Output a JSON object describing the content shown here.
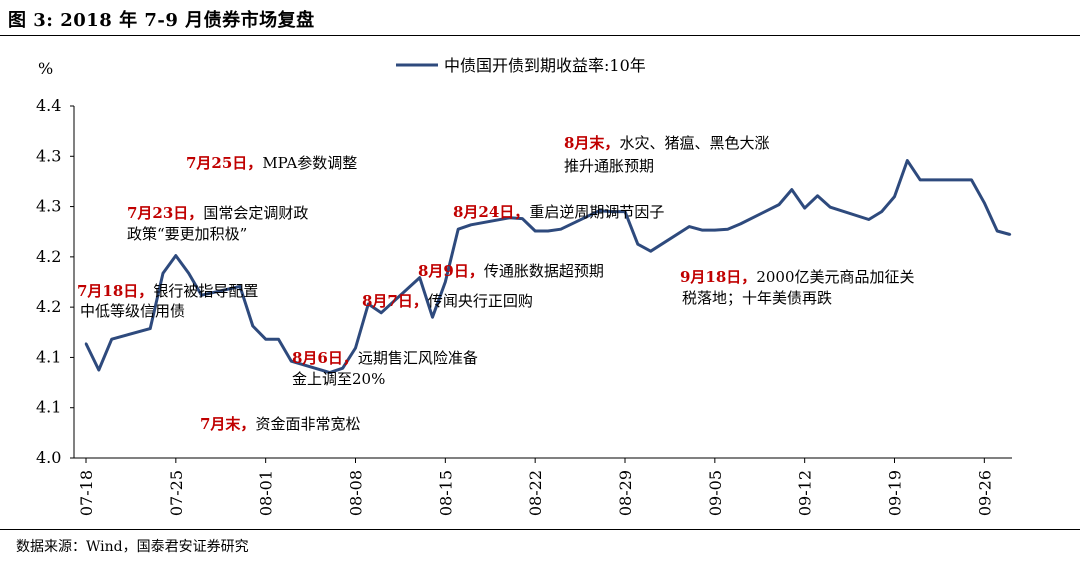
{
  "figure": {
    "title": "图 3:  2018 年 7-9 月债券市场复盘",
    "source": "数据来源：Wind，国泰君安证券研究"
  },
  "chart_data": {
    "type": "line",
    "ylabel": "%",
    "ylim": [
      4.0,
      4.4
    ],
    "y_tick_labels": [
      "4.4",
      "4.3",
      "4.3",
      "4.2",
      "4.2",
      "4.1",
      "4.1",
      "4.0"
    ],
    "y_tick_values": [
      4.4,
      4.35,
      4.3,
      4.25,
      4.2,
      4.15,
      4.1,
      4.05
    ],
    "x_tick_labels": [
      "07-18",
      "07-25",
      "08-01",
      "08-08",
      "08-15",
      "08-22",
      "08-29",
      "09-05",
      "09-12",
      "09-19",
      "09-26"
    ],
    "legend": {
      "position": "top-center"
    },
    "series": [
      {
        "name": "中债国开债到期收益率:10年",
        "color": "#2e4a7d",
        "x": [
          "07-18",
          "07-19",
          "07-20",
          "07-23",
          "07-24",
          "07-25",
          "07-26",
          "07-27",
          "07-30",
          "07-31",
          "08-01",
          "08-02",
          "08-03",
          "08-06",
          "08-07",
          "08-08",
          "08-09",
          "08-10",
          "08-13",
          "08-14",
          "08-15",
          "08-16",
          "08-17",
          "08-20",
          "08-21",
          "08-22",
          "08-23",
          "08-24",
          "08-27",
          "08-28",
          "08-29",
          "08-30",
          "08-31",
          "09-03",
          "09-04",
          "09-05",
          "09-06",
          "09-07",
          "09-10",
          "09-11",
          "09-12",
          "09-13",
          "09-14",
          "09-17",
          "09-18",
          "09-19",
          "09-20",
          "09-21",
          "09-25",
          "09-26",
          "09-27",
          "09-28"
        ],
        "y": [
          4.13,
          4.1,
          4.135,
          4.147,
          4.21,
          4.23,
          4.21,
          4.185,
          4.195,
          4.15,
          4.135,
          4.135,
          4.11,
          4.097,
          4.102,
          4.125,
          4.175,
          4.165,
          4.205,
          4.16,
          4.2,
          4.26,
          4.265,
          4.273,
          4.272,
          4.258,
          4.258,
          4.26,
          4.281,
          4.28,
          4.28,
          4.243,
          4.235,
          4.263,
          4.259,
          4.259,
          4.26,
          4.266,
          4.288,
          4.305,
          4.284,
          4.298,
          4.285,
          4.271,
          4.28,
          4.297,
          4.338,
          4.316,
          4.316,
          4.29,
          4.258,
          4.254
        ]
      }
    ],
    "annotations": [
      {
        "date": "7月25日，",
        "text": "MPA参数调整"
      },
      {
        "date": "7月23日，",
        "text": "国常会定调财政",
        "text2": "政策“要更加积极”"
      },
      {
        "date": "7月18日，",
        "text": "银行被指导配置",
        "text2": "中低等级信用债"
      },
      {
        "date": "7月末，",
        "text": "资金面非常宽松"
      },
      {
        "date": "8月6日，",
        "text": "远期售汇风险准备",
        "text2": "金上调至20%"
      },
      {
        "date": "8月7日，",
        "text": "传闻央行正回购"
      },
      {
        "date": "8月9日，",
        "text": "传通胀数据超预期"
      },
      {
        "date": "8月24日，",
        "text": "重启逆周期调节因子"
      },
      {
        "date": "8月末，",
        "text": "水灾、猪瘟、黑色大涨",
        "text2": "推升通胀预期"
      },
      {
        "date": "9月18日，",
        "text": "2000亿美元商品加征关",
        "text2": "税落地；十年美债再跌"
      }
    ]
  }
}
